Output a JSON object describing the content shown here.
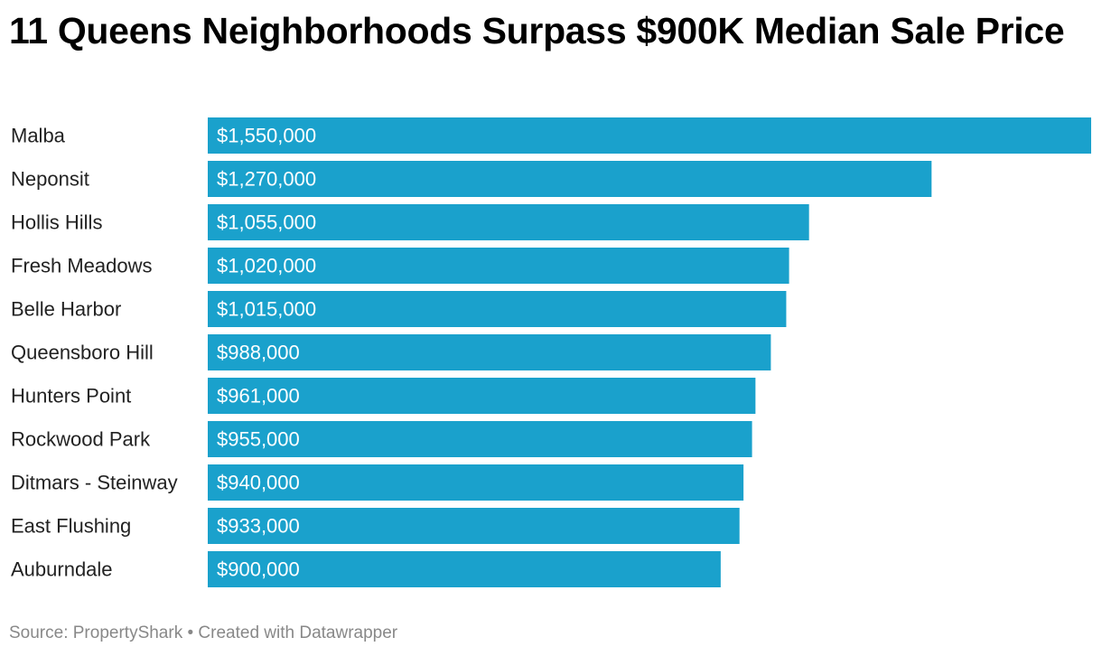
{
  "chart_data": {
    "type": "bar",
    "orientation": "horizontal",
    "title": "11 Queens Neighborhoods Surpass $900K Median Sale Price",
    "categories": [
      "Malba",
      "Neponsit",
      "Hollis Hills",
      "Fresh Meadows",
      "Belle Harbor",
      "Queensboro Hill",
      "Hunters Point",
      "Rockwood Park",
      "Ditmars - Steinway",
      "East Flushing",
      "Auburndale"
    ],
    "values": [
      1550000,
      1270000,
      1055000,
      1020000,
      1015000,
      988000,
      961000,
      955000,
      940000,
      933000,
      900000
    ],
    "value_labels": [
      "$1,550,000",
      "$1,270,000",
      "$1,055,000",
      "$1,020,000",
      "$1,015,000",
      "$988,000",
      "$961,000",
      "$955,000",
      "$940,000",
      "$933,000",
      "$900,000"
    ],
    "xlim": [
      0,
      1550000
    ],
    "xlabel": "",
    "ylabel": "",
    "grid": false,
    "bar_color": "#1aa1cc"
  },
  "footer": {
    "source": "Source: PropertyShark",
    "separator": " • ",
    "credit": "Created with Datawrapper"
  }
}
